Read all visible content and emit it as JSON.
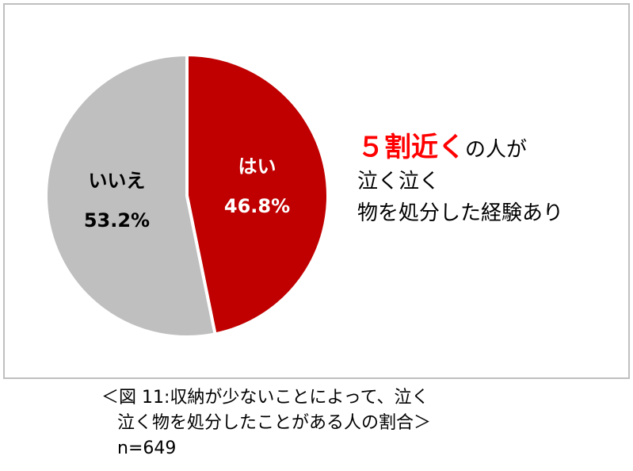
{
  "chart_data": {
    "type": "pie",
    "slices": [
      {
        "label": "はい",
        "value": 46.8,
        "value_label": "46.8%",
        "color": "#c00000",
        "label_color": "#ffffff"
      },
      {
        "label": "いいえ",
        "value": 53.2,
        "value_label": "53.2%",
        "color": "#bfbfbf",
        "label_color": "#000000"
      }
    ]
  },
  "callout": {
    "highlight": "５割近く",
    "line1_rest": "の人が",
    "line2": "泣く泣く",
    "line3": "物を処分した経験あり",
    "highlight_color": "#ff0000"
  },
  "caption": {
    "line1": "＜図 11:収納が少ないことによって、泣く",
    "line2": "泣く物を処分したことがある人の割合＞",
    "line3": "n=649"
  }
}
